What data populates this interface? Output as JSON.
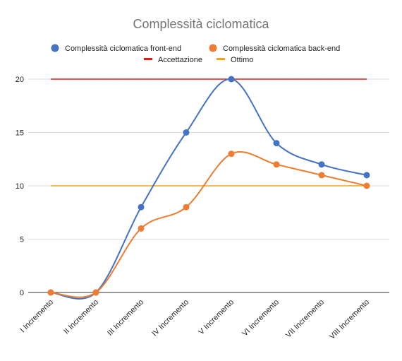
{
  "chart_data": {
    "type": "line",
    "title": "Complessità ciclomatica",
    "xlabel": "",
    "ylabel": "",
    "categories": [
      "I Incremento",
      "II Incremento",
      "III Incremento",
      "IV Incremento",
      "V Incremento",
      "VI Incremento",
      "VII Incremento",
      "VIII Incremento"
    ],
    "ylim": [
      0,
      20
    ],
    "yticks": [
      0,
      5,
      10,
      15,
      20
    ],
    "grid": true,
    "legend_position": "top",
    "series": [
      {
        "name": "Complessità ciclomatica front-end",
        "values": [
          0,
          0,
          8,
          15,
          20,
          14,
          12,
          11
        ],
        "color": "#4472c4",
        "style": "smooth-markers"
      },
      {
        "name": "Complessità ciclomatica back-end",
        "values": [
          0,
          0,
          6,
          8,
          13,
          12,
          11,
          10
        ],
        "color": "#ed7d31",
        "style": "smooth-markers"
      },
      {
        "name": "Accettazione",
        "values": [
          20,
          20,
          20,
          20,
          20,
          20,
          20,
          20
        ],
        "color": "#e21b1b",
        "style": "line"
      },
      {
        "name": "Ottimo",
        "values": [
          10,
          10,
          10,
          10,
          10,
          10,
          10,
          10
        ],
        "color": "#f6a21b",
        "style": "line"
      }
    ]
  }
}
